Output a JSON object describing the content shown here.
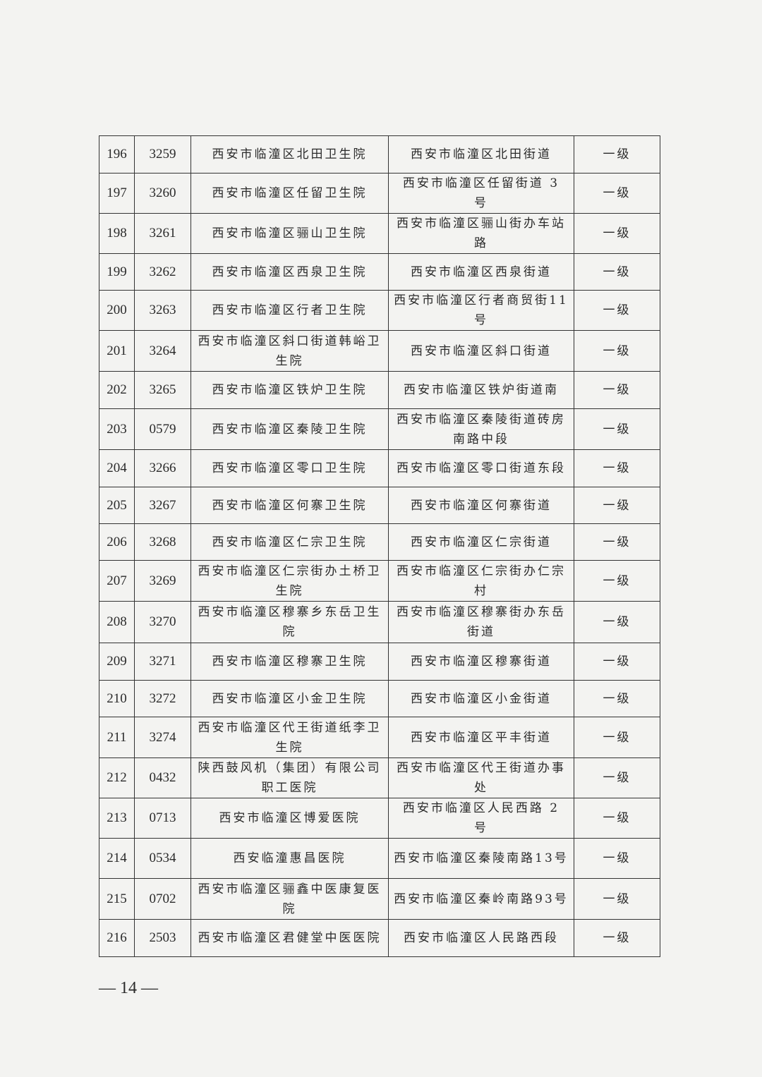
{
  "table": {
    "rows": [
      [
        "196",
        "3259",
        "西安市临潼区北田卫生院",
        "西安市临潼区北田街道",
        "一级"
      ],
      [
        "197",
        "3260",
        "西安市临潼区任留卫生院",
        "西安市临潼区任留街道 3 号",
        "一级"
      ],
      [
        "198",
        "3261",
        "西安市临潼区骊山卫生院",
        "西安市临潼区骊山街办车站路",
        "一级"
      ],
      [
        "199",
        "3262",
        "西安市临潼区西泉卫生院",
        "西安市临潼区西泉街道",
        "一级"
      ],
      [
        "200",
        "3263",
        "西安市临潼区行者卫生院",
        "西安市临潼区行者商贸街11号",
        "一级"
      ],
      [
        "201",
        "3264",
        "西安市临潼区斜口街道韩峪卫生院",
        "西安市临潼区斜口街道",
        "一级"
      ],
      [
        "202",
        "3265",
        "西安市临潼区铁炉卫生院",
        "西安市临潼区铁炉街道南",
        "一级"
      ],
      [
        "203",
        "0579",
        "西安市临潼区秦陵卫生院",
        "西安市临潼区秦陵街道砖房南路中段",
        "一级"
      ],
      [
        "204",
        "3266",
        "西安市临潼区零口卫生院",
        "西安市临潼区零口街道东段",
        "一级"
      ],
      [
        "205",
        "3267",
        "西安市临潼区何寨卫生院",
        "西安市临潼区何寨街道",
        "一级"
      ],
      [
        "206",
        "3268",
        "西安市临潼区仁宗卫生院",
        "西安市临潼区仁宗街道",
        "一级"
      ],
      [
        "207",
        "3269",
        "西安市临潼区仁宗街办土桥卫生院",
        "西安市临潼区仁宗街办仁宗村",
        "一级"
      ],
      [
        "208",
        "3270",
        "西安市临潼区穆寨乡东岳卫生院",
        "西安市临潼区穆寨街办东岳街道",
        "一级"
      ],
      [
        "209",
        "3271",
        "西安市临潼区穆寨卫生院",
        "西安市临潼区穆寨街道",
        "一级"
      ],
      [
        "210",
        "3272",
        "西安市临潼区小金卫生院",
        "西安市临潼区小金街道",
        "一级"
      ],
      [
        "211",
        "3274",
        "西安市临潼区代王街道纸李卫生院",
        "西安市临潼区平丰街道",
        "一级"
      ],
      [
        "212",
        "0432",
        "陕西鼓风机（集团）有限公司职工医院",
        "西安市临潼区代王街道办事处",
        "一级"
      ],
      [
        "213",
        "0713",
        "西安市临潼区博爱医院",
        "西安市临潼区人民西路 2 号",
        "一级"
      ],
      [
        "214",
        "0534",
        "西安临潼惠昌医院",
        "西安市临潼区秦陵南路13号",
        "一级"
      ],
      [
        "215",
        "0702",
        "西安市临潼区骊鑫中医康复医院",
        "西安市临潼区秦岭南路93号",
        "一级"
      ],
      [
        "216",
        "2503",
        "西安市临潼区君健堂中医医院",
        "西安市临潼区人民路西段",
        "一级"
      ]
    ]
  },
  "footer": {
    "page_number": "— 14 —"
  }
}
